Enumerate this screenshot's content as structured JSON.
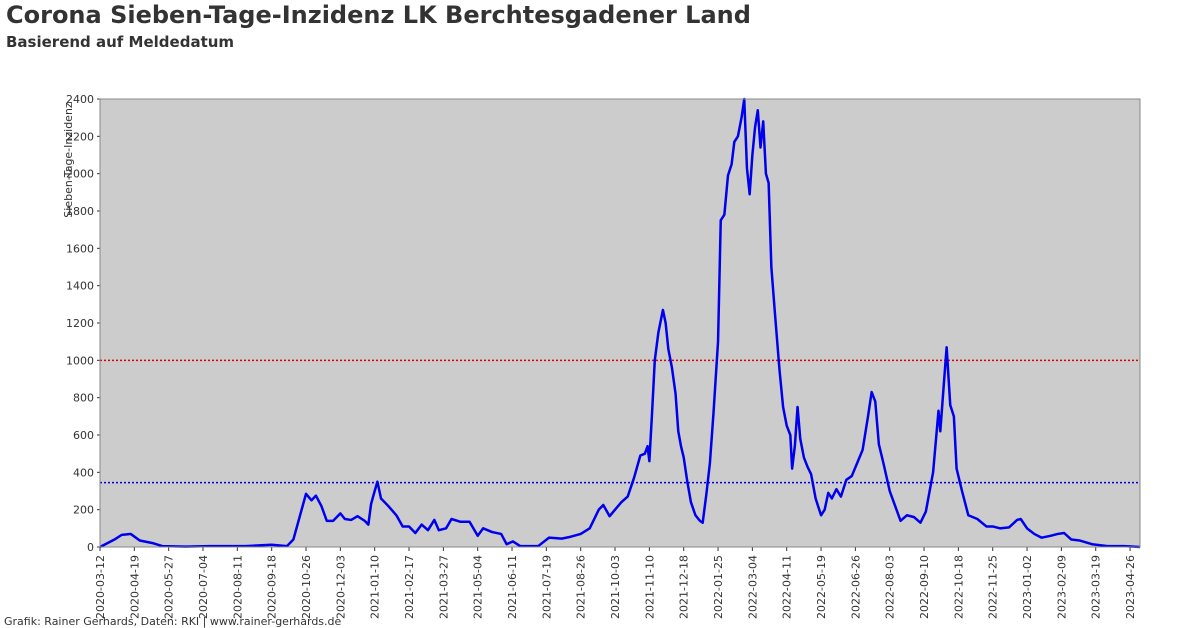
{
  "chart_data": {
    "type": "line",
    "title": "Corona Sieben-Tage-Inzidenz LK Berchtesgadener Land",
    "subtitle": "Basierend auf Meldedatum",
    "y_label": "Sieben-Tage-Inzidenz",
    "footer": "Grafik: Rainer Gerhards, Daten: RKI | www.rainer-gerhards.de",
    "ylim": [
      0,
      2400
    ],
    "yticks": [
      0,
      200,
      400,
      600,
      800,
      1000,
      1200,
      1400,
      1600,
      1800,
      2000,
      2200,
      2400
    ],
    "xlim": [
      "2020-03-12",
      "2023-05-07"
    ],
    "xticks": [
      "2020-03-12",
      "2020-04-19",
      "2020-05-27",
      "2020-07-04",
      "2020-08-11",
      "2020-09-18",
      "2020-10-26",
      "2020-12-03",
      "2021-01-10",
      "2021-02-17",
      "2021-03-27",
      "2021-05-04",
      "2021-06-11",
      "2021-07-19",
      "2021-08-26",
      "2021-10-03",
      "2021-11-10",
      "2021-12-18",
      "2022-01-25",
      "2022-03-04",
      "2022-04-11",
      "2022-05-19",
      "2022-06-26",
      "2022-08-03",
      "2022-09-10",
      "2022-10-18",
      "2022-11-25",
      "2023-01-02",
      "2023-02-09",
      "2023-03-19",
      "2023-04-26"
    ],
    "reference_lines": [
      {
        "value": 1000,
        "color": "#dd0000"
      },
      {
        "value": 345,
        "color": "#0000dd"
      }
    ],
    "background": "#cccccc",
    "series": [
      {
        "color": "#0000ee",
        "x": [
          "2020-03-12",
          "2020-03-28",
          "2020-04-05",
          "2020-04-15",
          "2020-04-25",
          "2020-05-10",
          "2020-05-20",
          "2020-06-15",
          "2020-07-10",
          "2020-08-20",
          "2020-09-18",
          "2020-10-05",
          "2020-10-12",
          "2020-10-20",
          "2020-10-26",
          "2020-11-01",
          "2020-11-06",
          "2020-11-12",
          "2020-11-18",
          "2020-11-25",
          "2020-12-03",
          "2020-12-08",
          "2020-12-15",
          "2020-12-22",
          "2020-12-30",
          "2021-01-03",
          "2021-01-06",
          "2021-01-10",
          "2021-01-13",
          "2021-01-17",
          "2021-01-25",
          "2021-02-03",
          "2021-02-10",
          "2021-02-17",
          "2021-02-24",
          "2021-03-03",
          "2021-03-10",
          "2021-03-17",
          "2021-03-22",
          "2021-03-30",
          "2021-04-05",
          "2021-04-15",
          "2021-04-25",
          "2021-05-04",
          "2021-05-10",
          "2021-05-20",
          "2021-05-30",
          "2021-06-05",
          "2021-06-12",
          "2021-06-20",
          "2021-07-10",
          "2021-07-22",
          "2021-08-05",
          "2021-08-15",
          "2021-08-26",
          "2021-09-05",
          "2021-09-15",
          "2021-09-20",
          "2021-09-27",
          "2021-10-03",
          "2021-10-10",
          "2021-10-17",
          "2021-10-24",
          "2021-10-31",
          "2021-11-05",
          "2021-11-08",
          "2021-11-10",
          "2021-11-13",
          "2021-11-16",
          "2021-11-20",
          "2021-11-25",
          "2021-11-28",
          "2021-12-01",
          "2021-12-05",
          "2021-12-09",
          "2021-12-12",
          "2021-12-15",
          "2021-12-18",
          "2021-12-22",
          "2021-12-26",
          "2021-12-31",
          "2022-01-05",
          "2022-01-08",
          "2022-01-12",
          "2022-01-16",
          "2022-01-20",
          "2022-01-25",
          "2022-01-28",
          "2022-02-01",
          "2022-02-05",
          "2022-02-09",
          "2022-02-12",
          "2022-02-16",
          "2022-02-20",
          "2022-02-23",
          "2022-02-26",
          "2022-03-01",
          "2022-03-04",
          "2022-03-07",
          "2022-03-10",
          "2022-03-13",
          "2022-03-16",
          "2022-03-19",
          "2022-03-22",
          "2022-03-25",
          "2022-03-29",
          "2022-04-03",
          "2022-04-07",
          "2022-04-11",
          "2022-04-15",
          "2022-04-17",
          "2022-04-20",
          "2022-04-23",
          "2022-04-26",
          "2022-04-30",
          "2022-05-04",
          "2022-05-08",
          "2022-05-13",
          "2022-05-19",
          "2022-05-23",
          "2022-05-27",
          "2022-05-31",
          "2022-06-05",
          "2022-06-10",
          "2022-06-16",
          "2022-06-22",
          "2022-06-28",
          "2022-07-04",
          "2022-07-10",
          "2022-07-14",
          "2022-07-18",
          "2022-07-22",
          "2022-07-27",
          "2022-08-03",
          "2022-08-09",
          "2022-08-15",
          "2022-08-22",
          "2022-08-30",
          "2022-09-06",
          "2022-09-12",
          "2022-09-20",
          "2022-09-26",
          "2022-09-28",
          "2022-10-02",
          "2022-10-05",
          "2022-10-09",
          "2022-10-13",
          "2022-10-16",
          "2022-10-22",
          "2022-10-29",
          "2022-11-08",
          "2022-11-18",
          "2022-11-25",
          "2022-12-03",
          "2022-12-13",
          "2022-12-22",
          "2022-12-26",
          "2023-01-02",
          "2023-01-10",
          "2023-01-18",
          "2023-01-28",
          "2023-02-05",
          "2023-02-12",
          "2023-02-20",
          "2023-03-01",
          "2023-03-15",
          "2023-04-01",
          "2023-04-20",
          "2023-05-07"
        ],
        "values": [
          0,
          40,
          65,
          70,
          35,
          20,
          5,
          2,
          5,
          5,
          12,
          5,
          40,
          180,
          285,
          250,
          275,
          220,
          140,
          140,
          180,
          150,
          145,
          165,
          140,
          120,
          230,
          300,
          350,
          260,
          220,
          170,
          110,
          110,
          75,
          120,
          90,
          145,
          90,
          100,
          150,
          135,
          135,
          60,
          100,
          80,
          70,
          15,
          30,
          5,
          5,
          50,
          45,
          55,
          70,
          100,
          200,
          225,
          165,
          200,
          240,
          270,
          370,
          490,
          500,
          540,
          460,
          720,
          1000,
          1150,
          1270,
          1200,
          1060,
          960,
          820,
          620,
          540,
          480,
          350,
          240,
          170,
          140,
          130,
          280,
          450,
          720,
          1100,
          1750,
          1780,
          1990,
          2050,
          2170,
          2200,
          2300,
          2400,
          2030,
          1890,
          2100,
          2250,
          2340,
          2140,
          2280,
          2000,
          1950,
          1500,
          1250,
          950,
          750,
          650,
          600,
          420,
          540,
          750,
          580,
          480,
          430,
          390,
          260,
          170,
          200,
          290,
          260,
          310,
          270,
          360,
          380,
          450,
          520,
          700,
          830,
          780,
          550,
          450,
          300,
          220,
          140,
          170,
          160,
          130,
          190,
          400,
          730,
          620,
          880,
          1070,
          760,
          700,
          420,
          300,
          170,
          150,
          110,
          110,
          100,
          105,
          145,
          150,
          100,
          70,
          50,
          60,
          70,
          75,
          40,
          35,
          15,
          5,
          5,
          0
        ]
      }
    ]
  }
}
